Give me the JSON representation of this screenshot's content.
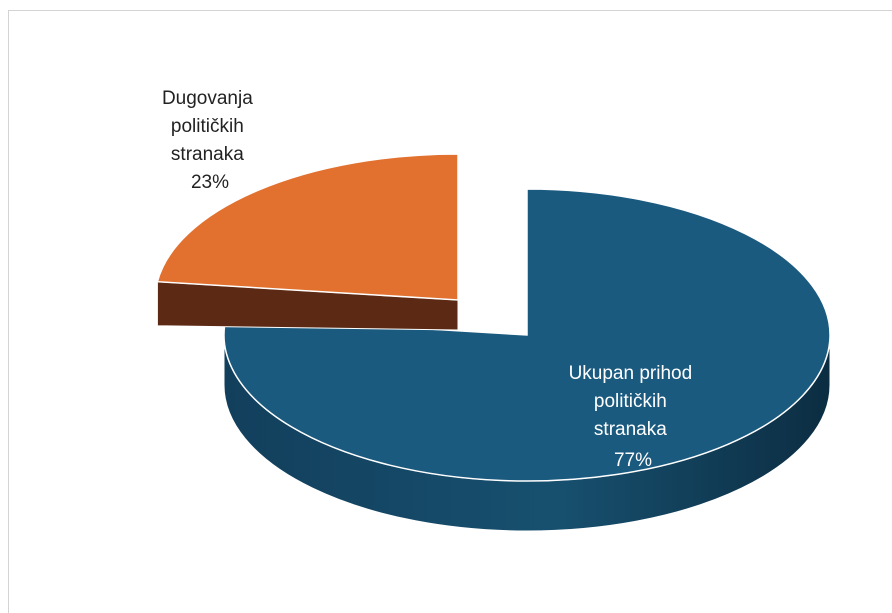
{
  "chart_data": {
    "type": "pie",
    "title": "",
    "slices": [
      {
        "label_lines": [
          "Ukupan prihod",
          "političkih",
          "stranaka"
        ],
        "percent_label": "77%",
        "value": 77,
        "color": "#1b5a7f",
        "side_color": "#0f3a55"
      },
      {
        "label_lines": [
          "Dugovanja",
          "političkih",
          "stranaka"
        ],
        "percent_label": "23%",
        "value": 23,
        "color": "#e2712f",
        "side_color": "#5c2a14"
      }
    ],
    "style": "3d-exploded",
    "legend": "none"
  }
}
